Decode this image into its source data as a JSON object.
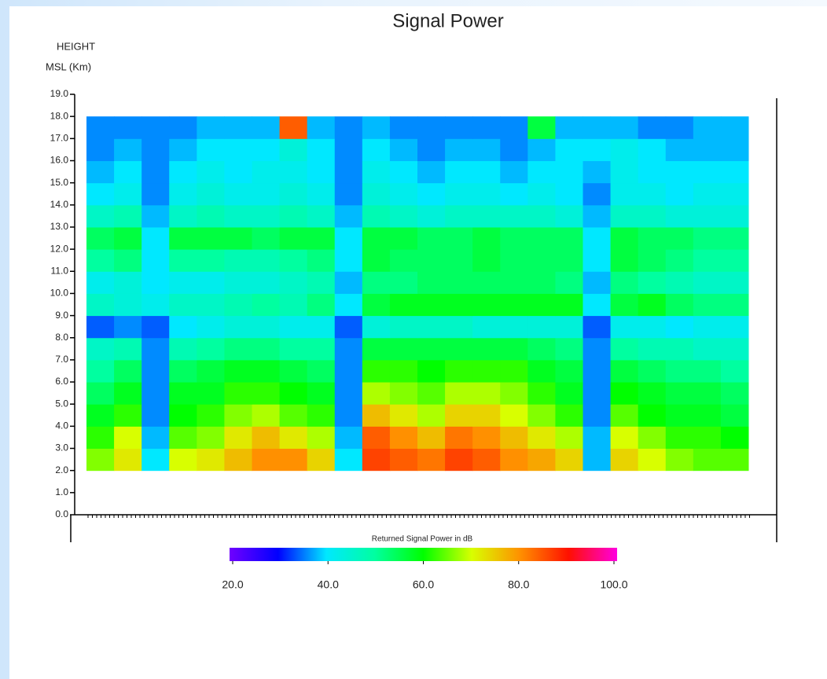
{
  "chart_data": {
    "type": "heatmap",
    "title": "Signal Power",
    "ylabel": [
      "HEIGHT",
      "MSL (Km)"
    ],
    "ylim": [
      0,
      19
    ],
    "yticks": [
      {
        "value": 0,
        "label": "0.0"
      },
      {
        "value": 1,
        "label": "1.0"
      },
      {
        "value": 2,
        "label": "2.0"
      },
      {
        "value": 3,
        "label": "3.0"
      },
      {
        "value": 4,
        "label": "4.0"
      },
      {
        "value": 5,
        "label": "5.0"
      },
      {
        "value": 6,
        "label": "6.0"
      },
      {
        "value": 7,
        "label": "7.0"
      },
      {
        "value": 8,
        "label": "8.0"
      },
      {
        "value": 9,
        "label": "9.0"
      },
      {
        "value": 10,
        "label": "10.0"
      },
      {
        "value": 11,
        "label": "11.0"
      },
      {
        "value": 12,
        "label": "12.0"
      },
      {
        "value": 13,
        "label": "13.0"
      },
      {
        "value": 14,
        "label": "14.0"
      },
      {
        "value": 15,
        "label": "15.0"
      },
      {
        "value": 16,
        "label": "16.0"
      },
      {
        "value": 17,
        "label": "17.0"
      },
      {
        "value": 18,
        "label": "18.0"
      },
      {
        "value": 19,
        "label": "19.0"
      }
    ],
    "ybins": [
      2,
      3,
      4,
      5,
      6,
      7,
      8,
      9,
      10,
      11,
      12,
      13,
      14,
      15,
      16,
      17,
      18
    ],
    "z": [
      [
        66,
        72,
        40,
        70,
        72,
        76,
        80,
        80,
        74,
        40,
        86,
        84,
        82,
        86,
        84,
        80,
        78,
        74,
        38,
        74,
        70,
        66,
        64,
        64
      ],
      [
        62,
        70,
        38,
        64,
        66,
        72,
        76,
        72,
        68,
        38,
        84,
        80,
        76,
        82,
        80,
        76,
        72,
        68,
        38,
        70,
        66,
        62,
        62,
        60
      ],
      [
        58,
        62,
        36,
        60,
        62,
        66,
        68,
        64,
        62,
        36,
        76,
        72,
        68,
        74,
        74,
        70,
        66,
        62,
        36,
        64,
        60,
        58,
        58,
        56
      ],
      [
        54,
        58,
        36,
        58,
        58,
        62,
        62,
        60,
        58,
        36,
        68,
        66,
        64,
        68,
        68,
        66,
        62,
        58,
        36,
        60,
        58,
        56,
        56,
        54
      ],
      [
        50,
        54,
        36,
        54,
        56,
        58,
        58,
        56,
        54,
        36,
        62,
        62,
        60,
        62,
        62,
        62,
        58,
        56,
        36,
        56,
        54,
        52,
        52,
        50
      ],
      [
        46,
        48,
        36,
        48,
        50,
        52,
        52,
        50,
        50,
        36,
        56,
        56,
        56,
        56,
        56,
        56,
        54,
        52,
        36,
        50,
        48,
        48,
        46,
        46
      ],
      [
        34,
        36,
        34,
        40,
        42,
        44,
        44,
        42,
        42,
        34,
        44,
        46,
        46,
        46,
        44,
        44,
        44,
        44,
        34,
        42,
        42,
        40,
        42,
        42
      ],
      [
        46,
        44,
        42,
        46,
        46,
        48,
        50,
        48,
        52,
        40,
        56,
        58,
        58,
        58,
        58,
        58,
        58,
        58,
        40,
        56,
        58,
        54,
        52,
        52
      ],
      [
        42,
        44,
        40,
        42,
        42,
        44,
        44,
        46,
        48,
        38,
        52,
        52,
        54,
        54,
        54,
        54,
        54,
        52,
        38,
        52,
        50,
        48,
        46,
        46
      ],
      [
        50,
        52,
        40,
        50,
        50,
        48,
        48,
        50,
        52,
        40,
        56,
        54,
        54,
        54,
        56,
        54,
        54,
        54,
        40,
        56,
        54,
        52,
        50,
        50
      ],
      [
        54,
        56,
        40,
        56,
        56,
        56,
        54,
        56,
        56,
        40,
        56,
        56,
        54,
        54,
        56,
        54,
        54,
        54,
        40,
        56,
        54,
        54,
        52,
        52
      ],
      [
        46,
        48,
        38,
        46,
        48,
        46,
        46,
        48,
        46,
        38,
        48,
        46,
        44,
        46,
        46,
        46,
        46,
        44,
        38,
        46,
        46,
        44,
        44,
        44
      ],
      [
        40,
        42,
        36,
        42,
        44,
        42,
        42,
        44,
        42,
        36,
        44,
        42,
        40,
        42,
        42,
        40,
        42,
        40,
        36,
        42,
        42,
        40,
        42,
        42
      ],
      [
        38,
        40,
        36,
        40,
        42,
        40,
        42,
        42,
        40,
        36,
        42,
        40,
        38,
        40,
        40,
        38,
        40,
        40,
        38,
        42,
        40,
        40,
        40,
        40
      ],
      [
        36,
        38,
        36,
        38,
        40,
        40,
        40,
        44,
        40,
        36,
        40,
        38,
        36,
        38,
        38,
        36,
        38,
        40,
        40,
        42,
        40,
        38,
        38,
        38
      ],
      [
        36,
        36,
        36,
        36,
        38,
        38,
        38,
        84,
        38,
        36,
        38,
        36,
        36,
        36,
        36,
        36,
        56,
        38,
        38,
        38,
        36,
        36,
        38,
        38
      ]
    ],
    "clim": [
      20,
      100
    ],
    "colorscale": [
      "#7000ff",
      "#0000ff",
      "#00e8ff",
      "#00ffa0",
      "#00ff00",
      "#d8ff00",
      "#ff9000",
      "#ff1000",
      "#ff00e0"
    ],
    "colorbar_label": "Returned Signal Power in dB",
    "colorbar_ticks": [
      {
        "value": 20,
        "label": "20.0"
      },
      {
        "value": 40,
        "label": "40.0"
      },
      {
        "value": 60,
        "label": "60.0"
      },
      {
        "value": 80,
        "label": "80.0"
      },
      {
        "value": 100,
        "label": "100.0"
      }
    ]
  }
}
